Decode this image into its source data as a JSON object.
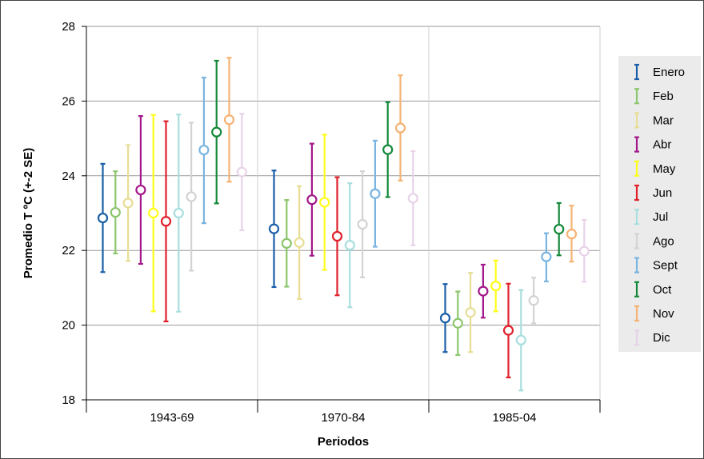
{
  "chart_data": {
    "type": "scatter",
    "title": "",
    "xlabel": "Periodos",
    "ylabel": "Promedio T ºC (+-2 SE)",
    "ylim": [
      18,
      28
    ],
    "yticks": [
      "18",
      "20",
      "22",
      "24",
      "26",
      "28"
    ],
    "categories": [
      "1943-69",
      "1970-84",
      "1985-04"
    ],
    "grid": "horizontal and vertical",
    "legend_position": "right",
    "series": [
      {
        "name": "Enero",
        "color": "#1a5fa8",
        "values": [
          22.87,
          22.58,
          20.19
        ],
        "upper": [
          24.32,
          24.14,
          21.1
        ],
        "lower": [
          21.42,
          21.02,
          19.28
        ]
      },
      {
        "name": "Feb",
        "color": "#8cc66d",
        "values": [
          23.02,
          22.19,
          20.05
        ],
        "upper": [
          24.12,
          23.35,
          20.9
        ],
        "lower": [
          21.92,
          21.03,
          19.2
        ]
      },
      {
        "name": "Mar",
        "color": "#e8dd96",
        "values": [
          23.27,
          22.21,
          20.34
        ],
        "upper": [
          24.82,
          23.72,
          21.4
        ],
        "lower": [
          21.72,
          20.7,
          19.28
        ]
      },
      {
        "name": "Abr",
        "color": "#a3188a",
        "values": [
          23.62,
          23.36,
          20.91
        ],
        "upper": [
          25.6,
          24.86,
          21.62
        ],
        "lower": [
          21.64,
          21.86,
          20.2
        ]
      },
      {
        "name": "May",
        "color": "#ffff1a",
        "values": [
          23.0,
          23.29,
          21.05
        ],
        "upper": [
          25.63,
          25.1,
          21.73
        ],
        "lower": [
          20.37,
          21.48,
          20.37
        ]
      },
      {
        "name": "Jun",
        "color": "#e0202a",
        "values": [
          22.78,
          22.38,
          19.86
        ],
        "upper": [
          25.46,
          23.96,
          21.11
        ],
        "lower": [
          20.1,
          20.8,
          18.6
        ]
      },
      {
        "name": "Jul",
        "color": "#a8dede",
        "values": [
          23.0,
          22.14,
          19.6
        ],
        "upper": [
          25.64,
          23.8,
          20.94
        ],
        "lower": [
          20.36,
          20.48,
          18.25
        ]
      },
      {
        "name": "Ago",
        "color": "#d3d3d3",
        "values": [
          23.44,
          22.7,
          20.66
        ],
        "upper": [
          25.42,
          24.12,
          21.27
        ],
        "lower": [
          21.46,
          21.28,
          20.05
        ]
      },
      {
        "name": "Sept",
        "color": "#7ab4e0",
        "values": [
          24.69,
          23.52,
          21.83
        ],
        "upper": [
          26.63,
          24.94,
          22.46
        ],
        "lower": [
          22.73,
          22.1,
          21.17
        ]
      },
      {
        "name": "Oct",
        "color": "#14883a",
        "values": [
          25.17,
          24.7,
          22.57
        ],
        "upper": [
          27.08,
          25.97,
          23.27
        ],
        "lower": [
          23.26,
          23.43,
          21.87
        ]
      },
      {
        "name": "Nov",
        "color": "#f5b272",
        "values": [
          25.5,
          25.28,
          22.44
        ],
        "upper": [
          27.16,
          26.69,
          23.2
        ],
        "lower": [
          23.84,
          23.87,
          21.7
        ]
      },
      {
        "name": "Dic",
        "color": "#e8d2e8",
        "values": [
          24.1,
          23.4,
          21.98
        ],
        "upper": [
          25.66,
          24.66,
          22.82
        ],
        "lower": [
          22.54,
          22.14,
          21.16
        ]
      }
    ]
  }
}
